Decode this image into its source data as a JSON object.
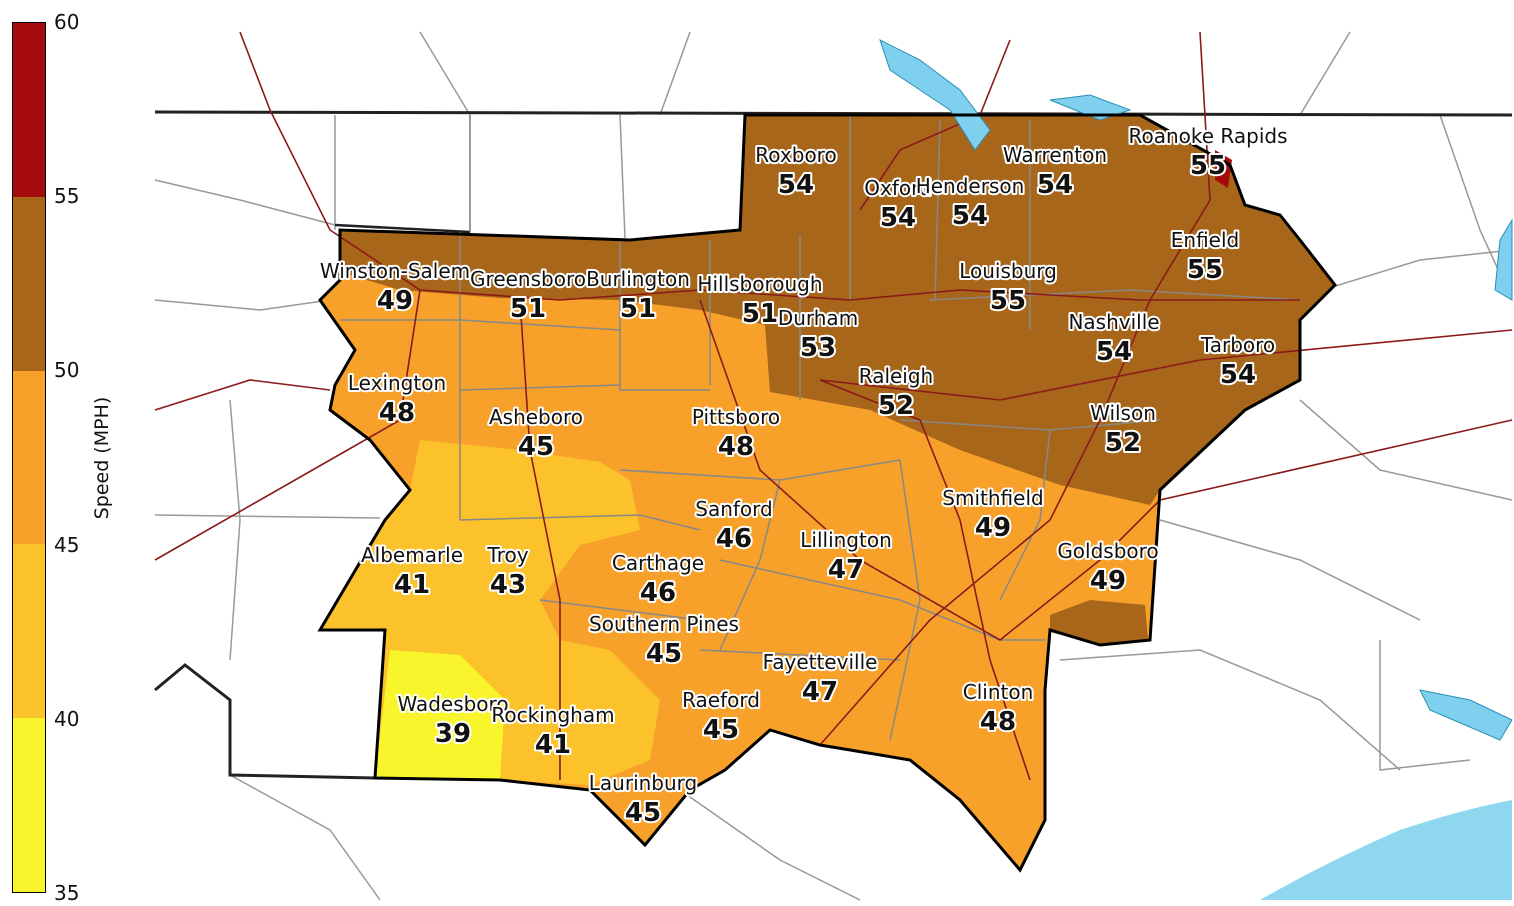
{
  "legend": {
    "label": "Speed (MPH)",
    "ticks": [
      "60",
      "55",
      "50",
      "45",
      "40",
      "35"
    ],
    "bins": [
      {
        "range": "55-60",
        "color": "#a50b0b"
      },
      {
        "range": "50-55",
        "color": "#a8661b"
      },
      {
        "range": "45-50",
        "color": "#f7a12b"
      },
      {
        "range": "40-45",
        "color": "#fbc22c"
      },
      {
        "range": "35-40",
        "color": "#f8f52c"
      }
    ]
  },
  "colors": {
    "county_line": "#888888",
    "state_line": "#000000",
    "highway": "#8b1a1a",
    "water": "#7fd0ee",
    "outline": "#000000"
  },
  "cities": [
    {
      "name": "Roxboro",
      "value": "54"
    },
    {
      "name": "Warrenton",
      "value": "54"
    },
    {
      "name": "Roanoke Rapids",
      "value": "55"
    },
    {
      "name": "Oxford",
      "value": "54"
    },
    {
      "name": "Henderson",
      "value": "54"
    },
    {
      "name": "Enfield",
      "value": "55"
    },
    {
      "name": "Winston-Salem",
      "value": "49"
    },
    {
      "name": "Greensboro",
      "value": "51"
    },
    {
      "name": "Burlington",
      "value": "51"
    },
    {
      "name": "Hillsborough",
      "value": "51"
    },
    {
      "name": "Durham",
      "value": "53"
    },
    {
      "name": "Louisburg",
      "value": "55"
    },
    {
      "name": "Nashville",
      "value": "54"
    },
    {
      "name": "Tarboro",
      "value": "54"
    },
    {
      "name": "Lexington",
      "value": "48"
    },
    {
      "name": "Asheboro",
      "value": "45"
    },
    {
      "name": "Pittsboro",
      "value": "48"
    },
    {
      "name": "Raleigh",
      "value": "52"
    },
    {
      "name": "Wilson",
      "value": "52"
    },
    {
      "name": "Sanford",
      "value": "46"
    },
    {
      "name": "Smithfield",
      "value": "49"
    },
    {
      "name": "Albemarle",
      "value": "41"
    },
    {
      "name": "Troy",
      "value": "43"
    },
    {
      "name": "Carthage",
      "value": "46"
    },
    {
      "name": "Lillington",
      "value": "47"
    },
    {
      "name": "Goldsboro",
      "value": "49"
    },
    {
      "name": "Southern Pines",
      "value": "45"
    },
    {
      "name": "Fayetteville",
      "value": "47"
    },
    {
      "name": "Wadesboro",
      "value": "39"
    },
    {
      "name": "Rockingham",
      "value": "41"
    },
    {
      "name": "Raeford",
      "value": "45"
    },
    {
      "name": "Clinton",
      "value": "48"
    },
    {
      "name": "Laurinburg",
      "value": "45"
    }
  ]
}
